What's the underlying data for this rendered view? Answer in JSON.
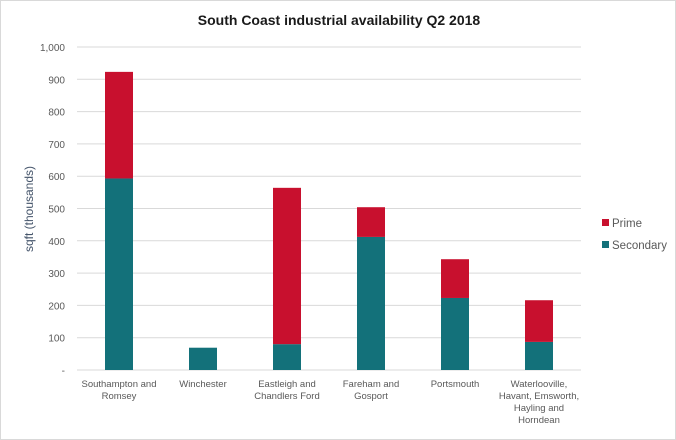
{
  "chart_data": {
    "type": "bar",
    "stacked": true,
    "title": "South Coast industrial availability Q2 2018",
    "ylabel": "sqft  (thousands)",
    "xlabel": "",
    "ylim": [
      0,
      1000
    ],
    "yticks": [
      0,
      100,
      200,
      300,
      400,
      500,
      600,
      700,
      800,
      900,
      1000
    ],
    "ytick_labels": [
      "-",
      "100",
      "200",
      "300",
      "400",
      "500",
      "600",
      "700",
      "800",
      "900",
      "1,000"
    ],
    "grid": true,
    "legend_placement": "right",
    "categories": [
      [
        "Southampton and",
        "Romsey"
      ],
      [
        "Winchester"
      ],
      [
        "Eastleigh and",
        "Chandlers Ford"
      ],
      [
        "Fareham and",
        "Gosport"
      ],
      [
        "Portsmouth"
      ],
      [
        "Waterlooville,",
        "Havant, Emsworth,",
        "Hayling and",
        "Horndean"
      ]
    ],
    "series": [
      {
        "name": "Secondary",
        "color": "#13717a",
        "values": [
          593,
          69,
          80,
          412,
          223,
          87
        ]
      },
      {
        "name": "Prime",
        "color": "#c8102e",
        "values": [
          330,
          0,
          484,
          92,
          120,
          129
        ]
      }
    ]
  }
}
